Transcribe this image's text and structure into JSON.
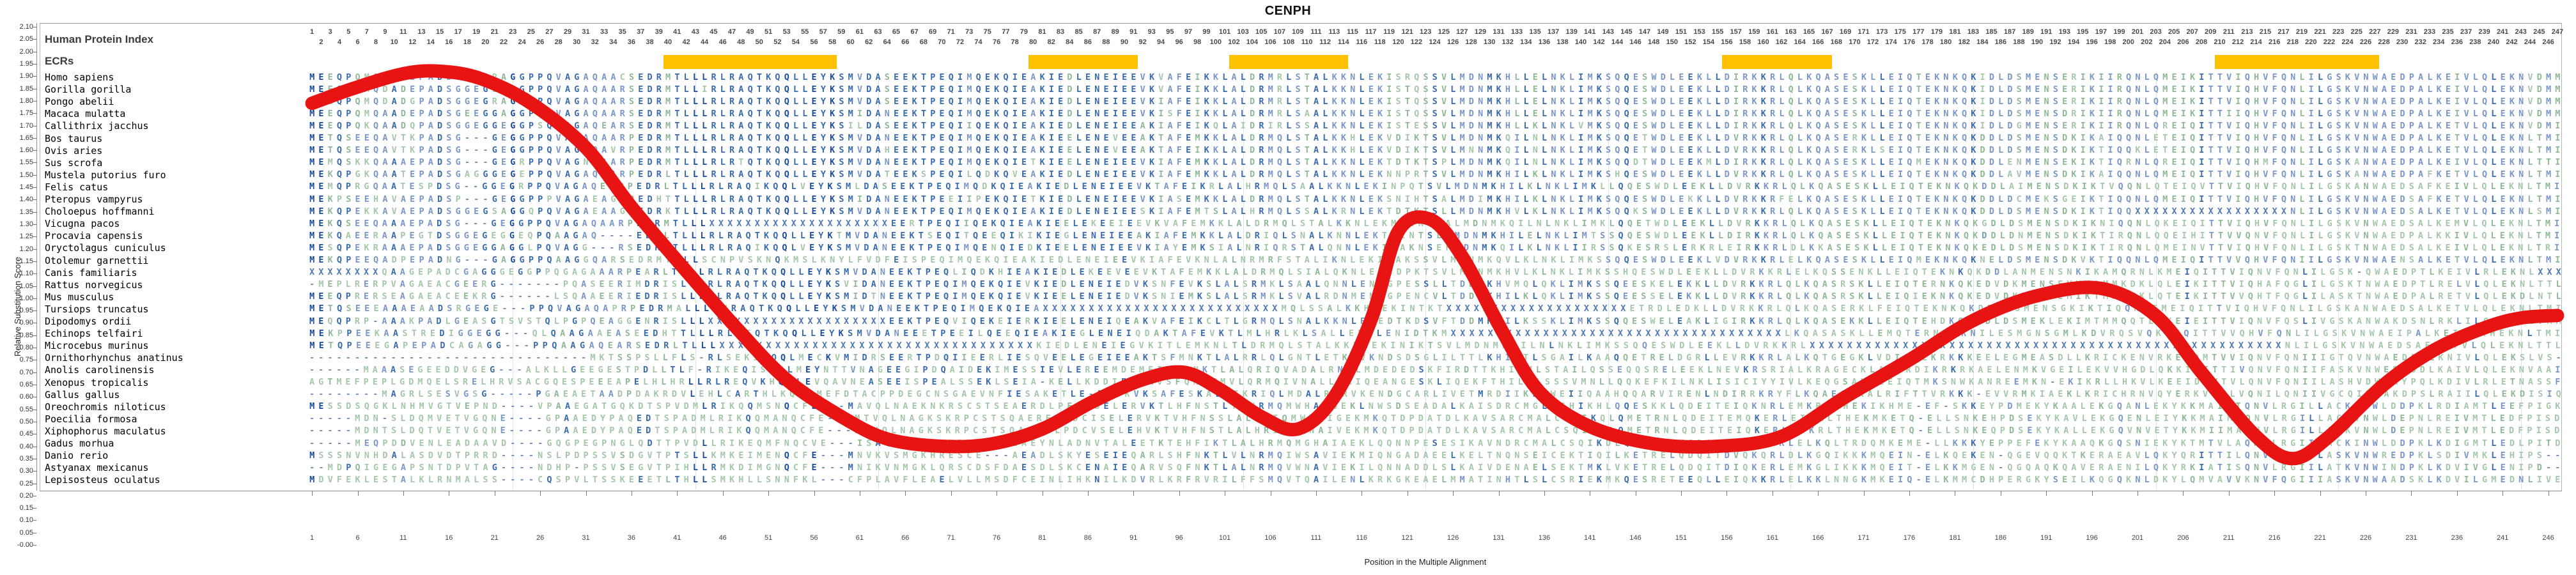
{
  "title": "CENPH",
  "header": {
    "index_label": "Human Protein Index",
    "ecr_label": "ECRs",
    "column_numbers": {
      "first": 1,
      "last": 247
    }
  },
  "y_axis": {
    "label": "Relative Substitution Score",
    "min": 0.0,
    "max": 2.1,
    "step": 0.05
  },
  "x_axis": {
    "label": "Position in the Multiple Alignment",
    "tick_start": 1,
    "tick_step": 5,
    "tick_end": 246
  },
  "ecr_regions": [
    {
      "start": 40,
      "end": 58
    },
    {
      "start": 80,
      "end": 91
    },
    {
      "start": 102,
      "end": 114
    },
    {
      "start": 156,
      "end": 167
    },
    {
      "start": 210,
      "end": 227
    }
  ],
  "colors": {
    "ecr_bar": "#FFC000",
    "curve": "#e81313",
    "cons_high": "#1b4c9c",
    "cons_mid": "#3a6cac",
    "cons_low": "#7b97c5",
    "variant": "#8fb996",
    "variant_rare": "#a5c7a9",
    "unknown_x": "#4f7ab3",
    "gap": "#7490b5"
  },
  "species": [
    {
      "name": "Homo sapiens",
      "seq": "MEEQPQMQDADEPADSGGEGRAGGPPQVAGAQAACSEDRMTLLLRLRAQTKQQLLEYKSMVDASEEKTPEQIMQEKQIEAKIEDLENEIEEVKVAFEIKKLALDRMRLSTALKKNLEKISRQSSVLMDNMKHLLELNKLIMKSQQESWDLEEKLLDIRKKRLQLKQASESKLLEIQTEKNKQKIDLDSMENSERIKIIRQNLQMEIKITTVIQHVFQNLILGSKVNWAEDPALKEIVLQLEKNVDMM"
    },
    {
      "name": "Gorilla gorilla",
      "seq": "MEEQPQMQDADEPADSGGEGLAGGPPQVAGAQAARSEDRMTLLIRLRAQTKQQLLEYKSMVDASEEKTPEQIMQEKQIEAKIEDLENEIEEVKVAFEIKKLALDRMRLSTALKKNLEKISTQSSVLMDNMKHLLELNKLIMKSQQESWDLEEKLLDIRKKRLQLKQASESKLLEIQTEKNKQKIDLDSMENSERIKIIRQNLQMEIKITTVIQHVFQNLILGSKVNWAEDPALKEIVLQLEKNVDMM"
    },
    {
      "name": "Pongo abelii",
      "seq": "MEGQPQMQDADGPADSGGEGRAGGPPQVAGAQAARSEDRMTLLLRLRAQTKQQLLEYKSMVDASEEKTPEQIMQEKQIEAKIEDLENEIEEVKIAFEIKKLALDRMRLSTALKKNLEKISTQSSVLMDNMKHLLELNKLIMKSQQESWDLEEKLLDIRKKRLQLKQASESKLLEIQTEKNKQKIDLDSMENSERIKIIRQNLQMEIKITTVIQHVFQNLILGSKVNWAEDPALKEIVLQLEKNVDMM"
    },
    {
      "name": "Macaca mulatta",
      "seq": "MEEQPQMQAADEPADSGEEGGAGGPPQVAGAQAARSEDRMTLLLRLRAQTKQQLLEYKSMIDANEEKTPEQIMQEKQIEAKIEDLENEIEEVKISFEIKKLALDRMRLSAALKKNLEKISTQSSVLMDNMKHLLELNKLIMKSQQESWDLEEKLLDIRKKRLQLKQASESKLLEIQTEKNKQKIDLDSMENSDRIKIIRQNLQMEIKITTIIQHVFQNLILGSKVNWAEDPALKEIVLQLEKNVDMM"
    },
    {
      "name": "Callithrix jacchus",
      "seq": "MEEQPQKQAADQPADSGGEGGEGGPSQVAGAQEARSEDRMTLLLRLRAQTKQQLLEYKSILDASEEKTPEQIIQEKQIEAKIEDLENEIEEAKIAFEIKQLAIDRIRLSSALKKNLEKISTESSVLMDNMKHLLKLNKLVMKSQQESWDLEEKLLDIRKKRLQLKQASESKLLEIQTEKNKQKIDLDGMENSERIKIIRQNLQREIQITTVIQHVFQNLILGSKVNWAEDPALKETVLQLEKNVDMI"
    },
    {
      "name": "Bos taurus",
      "seq": "METQSEEQAVTKPADSG---GEGGPPQVAGAQAARPEDRMTLLLRLRAQTKQQLLEYKSMVDANEEKTPEQIMQEKQIEAKIEELENEVEEAKTAFEMKKLALDRMQLSTALKKHLEKVDIKTSVLMDNMKQILNLNKLIMKSQQETWDLEEKLLDVRKKRLQLKQASERKLLEIQTEKNKQKDDLDSMENSDKIKAIQQNLETEIQITTVIQHVFQNLILGSKVNWAEDPALKETVLQLEKNLTMI"
    },
    {
      "name": "Ovis aries",
      "seq": "METQSEEQAVTKPADSG---GEGGPPQVAGAQAVRPEDRMTLLLRLRAQTKQQLLEYKSMVDAHEEKTPEQIMQEKQIEAKIEELENEVEEAKTAFEIKKLALDRMQLSTALKKHLEKVDIKTSVLMNNMKQILNLNKLIMKSQQETWDLEEKLLDVRKKRLQLKQASERKLSEIQTEKNKQKDDLDSMENSDKIKTIQQKLETEIQITTVIQHVFQNLILGSKVNWAEDPALKETVLQLEKNLTMI"
    },
    {
      "name": "Sus scrofa",
      "seq": "MEMQSKKQAAAEPADSG---GEGRPPQVAGNDAARPEDRMTLLLRLRTQTKQQLLEYKSMVDANEEKTPEQIMQEKQIETKIEELENEIEEVKIAFEMKKLALDRMQLSTALKKNLEKTDTKTSPLMDNMKQILNLNKLIMKSQQDTWDLEEKMLDIRKKRLQLKQASESKLLEIQMEKNKQKDDLENMENSEKIKTIQRNLQREIQITTVIQHMFQNLILGSKANWAEDPALKEIVLQLEKNLTTI"
    },
    {
      "name": "Mustela putorius furo",
      "seq": "MEKQPGKQAATEPADSGAGGGEGEPPQVAGAQAARPEDRLTLLLRLRAQTKQQLLEYKSMVDATEEKSPEQILQDKQVEAKIEDLENEIEEVKIAFEMKKLALDRMQLSTALKKNLEKNNPRTSVLMDNMKHILKLNKLIMKSHQESWDLEEKLLDVRKKRLQLKQASESKLLEIQTEKNKQKDDLAVMENSDKIKAIQQNLQMEIQITTVIQHVFQNLILGSKANWAEDPAFKETVLQLEKNLTMI"
    },
    {
      "name": "Felis catus",
      "seq": "MEMQPRGQAATESPDSG--GGEGRPPQVAGAQEARPEDRLTLLLRLRAQIKQQLVEYKSMLDASEEKTPEQIMQDKQIEAKIEDLENEIEEVKTAFEIKRLALHRMQLSAALKKNLEKINPQTSVLMDNMKHILKLNKLIMKLLQQESWDLEEKLLDVRKKRLQLKQASESKLLEIQTEKNKQKDDLAIMENSDKIKTVQQNLQTEIQVTTVIQHVFQNLILGSKANWAEDSAFKEIVLQLEKNLTMI"
    },
    {
      "name": "Pteropus vampyrus",
      "seq": "MEKPSEEHAVAEPADSP---GEGGPPPVAGAEAGRPEDHTTLLLRLRAQTKQQLLEYKSMIDANEEKTPEEIIPEKQIETKIEDLENEIEEVKIASEMKKLALDRMQLSTALKKNLEKSNIHTSALMDIMKHILKLNKLIMKSQQESWDLEKKLLDVRKKRFELKQASESKLLEIQTEKNKQKDDLDCMEKSGEIKTIQQNLQMEIQITTVIQHVFQNLILGSKVNWAEDSAFKETVLQLEKNLTMI"
    },
    {
      "name": "Choloepus hoffmanni",
      "seq": "MEKQPEKKAVAEPADSGGEGSAGGQPQVAGAEAAGGEDRKTLLLRLRAQTKQQLLEYKSMVDANEEKTPEQIMQEKQIEAKIEDLENEIEESKIAFEMTSLALHRMQLSSALKRNLEKTDTKTSLLMDNMKHVLKLNKLIMKSQQKSWDLEEKLLDVRKKRLQLKQASESKLLEIQTEKNKQKDDLDSMENSDKIKTIQQXXXXXXXXXXXXXXXXXNLILGSKVNWAEDSALKETVLQLEKNLSMI"
    },
    {
      "name": "Vicugna pacos",
      "seq": "MEKQSEEQAAAEPADSG---GEGGPPQVAGAQAARPEDRMTLLLXXXXXXXXXXXXXXXXXXXXEERTPEQIIQEKQIEAKIEELEKEEIEEVKVAFEMKKLALDRMQLSTALKKNLEKMDIKTSALMDNMKQILNLNKLIMKLQQETWDLEEKLLDVRKKRLQLKQASESKLLEIQTEKNKQKGDLDSMENSDKIKNIQQNLQKEIQITTVIQHVFQNLILGSKVNWAEDSALKEMVLQLEKNLTMI"
    },
    {
      "name": "Procavia capensis",
      "seq": "MEKQAEERAAPEGTDSGGEGEGGEQPQAAGAQ----EDHLTLLLRLRAQTKQQLLEYKTMVDANEEKTSEQITQEEQIKIKIEGLENEIEEAKIAFEMKKLALDRIQLSNALKNNLEKTDINTSLLMDNMKHILELNKLIMTSSQQESWDLEEKLLDIRKKRLQLKQASESKLLEIQTEKNKQKDDLDNMENSDKIKTIRQNLQQEIHITTVVQNVFQNLILGSKVNWAEDPALKKIVLQLEKNLTMI"
    },
    {
      "name": "Oryctolagus cuniculus",
      "seq": "MESQPEKRAAAEPADSGGEGGAGGLPQVAGG---RSEDRVTLLLRLRAQIKQQLVEYKSMVDANEEKTPEQIMQENQIEDKIEELENEIEEVKIAYEMKSIALNRIQRSTALQNNLEKIDAKNSEFMDNMKQILKLNKLIIRSSQKESRSLERKRLEIRKKRLDLKKASESKLLEIQTEKNKQKEDLDSMENSDKIKTIRQNLQMEINVTTVIQHVFQNLILGSKTNWAEDSALKEIVLQLEKNLTRI"
    },
    {
      "name": "Otolemur garnettii",
      "seq": "MEKQPEEQADPEPADNG---GAGGPPQAAGGQARSEDRMTLLLSCNPVSKNQKMSLKNYLFVDFEISPEQIMQEKQIEAKIEDLENEIEEVKIAFEVKNLALNRMRFSTALIKNLEKINAKSSVLMDNMKQVLKLNKLIMKSSQQESWDLEEKLVDVRKKRLELKQASESKLLEIQMEKNKQKNELDSMENSDKVKTIQQNLQMEIQITTVVQHVFQNIILGSKVNWAENSALKETVLQLEKNLTMI"
    },
    {
      "name": "Canis familiaris",
      "seq": "XXXXXXXXQAAGEPADCGAGGGEGGPPQGAGAAARPEARLTLLLRLRAQTKQQLLEYKSMVDANEEKTPEQLIQDKHIEAKIEDLEKEEVEEVKTAFEMKKLALDRMQLSIALQKNLEKIDPKTSVLMDNMKHVLKLNKLIMKSSHQESWDLEEKLLDVRKKRLELKQSSENKLLEIQTEKNKQKDDLANMENSNKIKAMQRNLKMEIQITTVIQNVFQNLILGSK-QWAEDPTLKEIVLRLEKNLXXX"
    },
    {
      "name": "Rattus norvegicus",
      "seq": "-MEPLRERPVAGAEACGEERG-------PQASEERIMDRISLLLRLRAQTKQQLLEYKSVIDANEEKTPEQIMQEKQIEVKIEDLENEIEDVKSNFEVKSLALSRMKLSAALQNNLENMGPESSLLTDDMKHVMQLQKLIMKSSQEESKELEKKLLDVRKKRLQLKQASRSKLLEIQTERNKQKEDVDKMENSEVVKAMMKDKLQLEIKITTVIQHAFQGLILGSKTNWAEDPTLRELVLQLEKNLTTL"
    },
    {
      "name": "Mus musculus",
      "seq": "MEEQPRERSEAGAEACEEKRG------LSQAAEERIEDRISLLLRLRAQTKQQLLEYKSMIDTNEEKTPEQIMQEKQIEVKIEELENEIEDVKSNIEMKSLALSRMKLSVALRDNMENMGPENCVLTDDMKHILKLQKLIMKSSQEESSELEKKLLDVRKKRLQLKQASRSKLLEIQIEKNKQKEDVDKMENSEMIKTMMKKKLQTEIKITTVVQHTFQGLILASKTNWAEDPALRETVLQLEKDLNTL"
    },
    {
      "name": "Tursiops truncatus",
      "seq": "METQSEEEAAAEAADSRGEGE---PPQVAGAQAPRPEDRMALLLRVRAQTKQQLLEYKSMVDANEEKTPEQIMQEKQIEAXXXXXXXXXXXXXXXXXXXXXXXXXXMQLSSALKKHMEKINTKTXXXXXXXXXXXXXXXXXXXXETRDLEDKLLDVRKKRLQLKQASERKLFEIQTEKNKQKDDLGSMENSGKIKTIQQNLEMEIQITTVIQHVFQNLILGSKANWAEDSALKETVLQLEKNLTMI"
    },
    {
      "name": "Dipodomys ordii",
      "seq": "MEQQPRP-AAAKPADLGEASGTSVSTQLPGPQEAGGENRISLLLXXXXXXXXXXXXXXXXXXXXEEKTPEQVIQEKEIERKIEELENEIQEAKVAFEIKCLTLGRMQLSNALKKNLEKEDTKDSVFTDDMKHILKSSKLIMKSSQQESWELEAKLIGIRKKRLQLKQASEKKLLEIQTEHDKQQKDLDSMEKLEKIMTMMQQTLTKEIEITTVIQNVFQSLIVGSKANWAKDSNLRKLILQFEKNLTMM"
    },
    {
      "name": "Echinops telfairi",
      "seq": "MEKPPEEKAASTREDIGGEGG---QLQAAGAAEASEEDHTTLLLRLREQTKQQLLEYKSMVDANEEETPEEILQEEQIEAKIEGLENEIQDAKTAFEVKTLMLHRLKLSALLENNLENIDTKMXXXXXXXXXXXXXXXXXXXXXXXXXXXXXXXXXXXXLKQASASKLLEMQTERNKQKNILESMGNSGMLKDVRQSVQKEIQITTVVQHVFQNLILGSKVNWAEIPALKEIVLNHEKNLTMI"
    },
    {
      "name": "Microcebus murinus",
      "seq": "METQPEEEGAPEPADCAGAGG---PPQAAGAQEARSEDRLTLLLXXXXXXXXXXXXXXXXXXXXXXXXXXXXXXXXXXKIEDLENEIEGVKITLEMKNLTLDRMQLSTALKKHLEKINIKTSVLMDNMKQILNLNKLIMKSSQQESWDLEEKLLDVRKKRLXXXXXXXXXXXXXXXXXXXXXXXXXXXXXXXXXXXXXXXXXXXXXXXXXXXNLILGSKVNWAEDSAFKETVLQLEKNLTTL"
    },
    {
      "name": "Ornithorhynchus anatinus",
      "seq": "-------------------------------MKTSSPSLLFLS-RLSEKIKQQLMECKVMIDRSEERTPDQIIEERLIESQVEELEGEIEEAKTSFMNKTLALRRLQLGNTLETKLVKNDSDSGLILTTLKHILTLSGAILKAAQQETRELDGRLLEVRKKRLALKQTGEGKLVDIQTLKRKKKEELEGMEASDLLKRICKENVRKEIQMTVVIQNVFQNIIIGTQVNWAEDPALKNIVLQLEKSLVS-"
    },
    {
      "name": "Anolis carolinensis",
      "seq": "------MAAASEGEEDDVGEG---ALKLLGEEGESTPDLLTLF-RIKEQISQQLMEYNTTVNAGEEGIPDQAIDEKIMESSIEVLEREEMDEMEISYRNKTLALQRIQVADALRNKLMDEDEDSKFIRDTTKHIIMLSTAILQSSEQQSRELEEKLNEVKRSRIALKRAGECKLAQIRDIKRKRKAELENMKVGEILEKVVHGDLQKKIKITTIVQNVFQNIIFASKVNWEEDSDLKAIVLQLEKNVAAI"
    },
    {
      "name": "Xenopus tropicalis",
      "seq": "AGTMEFPEPLGDMQELSRELHRVSACGQESPEEEAPELHLHRLLRLREQVKHQRLEVQAVNEASEEISPEALSSEKLSEIA-KELLKDDIEDVKVSFQNKTMVLQRMQIVNALLSKIQEANGESKLIQEKFTHILMLSSSVMNLLQQKEFKILNKLISICIYYIVLKEQGSAKMLEIQTMKSNWKANREEMKN-EKIKRLLHKVLKEEIDSVTVLQNVFQNIILASHVDWAKYPQLKDIVLRLETNASSF"
    },
    {
      "name": "Gallus gallus",
      "seq": "--------MAGRLSESVGSG-----PGAEAETAADPDAKRDVLEHLCARTHLKQLVMEFDTACPPDEGCNSGAEVNFIESAKETLE-EVGKVKSAFESKALVIKRIQLMDALRKRVKENDGCARLIVETMRDIIKLNWEIIQAAHQQARVIRENLNDIRRKRYFLKQAEGEKALRIFTTVRKKK-EVVRMKIAEKLKRICHRNVQYERKVTTLVQNILQNIIVGCQINWAKDPSLRAIILQLEKDISIQ"
    },
    {
      "name": "Oreochromis niloticus",
      "seq": "MESSDSQGKLNHMVGTVEPND----VPAAEGATGQKDTSPVDMLRIKQQMSNQCFE---MAVQLNAEKNKRSCSTSEAERDLPEYISELERVKTLHFNSTLTLHRMQMWHAIGEKLNWSDSEADALKAISDRCMGLCSHIKHLQQESKKLQDEITEIQKNRLEMKRVTHEKIKHME-EF-SKKEYPDMEKYKAALEKGQANLEKYKKMAIMTQNVLRGILLACKVNWLDDPKLRDIAMTLEEFPIGK"
    },
    {
      "name": "Poecilia formosa",
      "seq": "-----MDN-SLDQMVETVGQNE----GPAAEDYPAQEDTSPADMLRIKQQMANQCFE---MTVQLNAGKSKRPCSTSQAERELPDCISELERVKTVHFNSSLALHRIQMWNAIGEKMKQTDPDATDLKAVSARCMALCSQIKQLQMETRNLQDEITEMQKERLEIKRLTHEKMKETQ-ELLSNKEHPDSEKYKAVLEKGQENLEIYKKMAIMAQNVLRGILLACKVNWLDEPNLREIVMTLEDFPISD"
    },
    {
      "name": "Xiphophorus maculatus",
      "seq": "-----MDNTSLDQTVETVGQNE----GPAAEDYPAQEDTSPADMLRIKQQMANQCFE---MTVQLNAGKSKRPCSTSQAERELPDCVSELEHVKTVHFNSTLALHRIQMWNAIVEKMKQTDPDATDLKAVSARCMALCSQIKRLQMETRNLQDEITEIQKERLEIKRLTHEKMKETQ-ELLSNKEQPDSEKYKALLEKGQVNVETYKKMIIMAQNVLRGILLACKVNWLDEPNLREIVMTLEDFPISD"
    },
    {
      "name": "Gadus morhua",
      "seq": "-----MEQPDDVENLEADAAVD----GQGPEGPNGLQDTTPVDLLRIKEQMFNQCVE---ISAQINAVENKRTCSTSEAEYNLADNVTALEETKTEHFIKTLALHRMQMGHAIAEKLQQNNPESESIKAVNDRCMALCSQIKDLQQESRDMGDQITDIRKKRLELKQLTRDQMKEME-LLKKKYEPPEFEKYKAAQKGQSNIEKYKTMTVLAQNVLRGIILACKINWLDDPKLKDIGMTLEDLPITD"
    },
    {
      "name": "Danio rerio",
      "seq": "MSSSNVNHDALASDVDTPRRD----NSLPDPSSVSDGVTPTSLLKMKEIMENQCFE---MNVKVSMGKHRESCE---AEADLSKYESEIEQARLSHFNKTLVLNRMQIWSAVIEKMIQNGADAEELKELTNQNSEICEKTIQILKETRELQDQITDVQKQRLDLKGQIKKKMQEIN-ELKQEKEN-QGEVQQKTKERAEAVLQKYQRITTILQNVLRGIILASKVNWREDPKLSDIVMKLEHIPS--"
    },
    {
      "name": "Astyanax mexicanus",
      "seq": "--MDPQIGEGAPSNTDPVTAG----NDHP-PSSVSEGVTPIHLLRMKDIMGNQCFE---MNIKVNMGKLQRSCDSFDAESDLSKCENAIEQARVSQFNKTLALNRMQVWNAVIEKILQNNADDLSLKAIVDENAELSEKTMKLVKETRELQDQITDIQKERLEMKGLIKKKMQEIT-ELKKMGEN-QGQAQKQAVERAENILQKYRKIATISQNVLRGIILATKVNWINDPKLKDVIVGLENIPD--"
    },
    {
      "name": "Lepisosteus oculatus",
      "seq": "MDVFEKLESTALKLRNMALSS----CQSPVLTSSKEEETLTHLLSMKHLLSNNFKL---CFPLAVFLEAELVLLMSDFCEINLIHKNILKDVRLKRFRVRILFFSMQVTQAILENLKRKGKEAELMMATINHTLSLCSRIEKMKQESRETEEQLLEIQKKRLELKKLNNGKMKEIQ-ELKMMCDHPERGKYSEILKQGQKNLDKYLQMVAVVKNVFQGIIIASKVNWAADSKLKDVILGMEDNLIVE"
    }
  ],
  "chart_data": {
    "type": "line",
    "title": "CENPH",
    "xlabel": "Position in the Multiple Alignment",
    "ylabel": "Relative Substitution Score",
    "xlim": [
      1,
      247
    ],
    "ylim": [
      0,
      2.1
    ],
    "legend": "none",
    "grid": "off",
    "line_color": "#e81313",
    "line_width": 21,
    "series": [
      {
        "name": "Relative Substitution Score",
        "points": [
          [
            1,
            1.79
          ],
          [
            5.5,
            1.85
          ],
          [
            11,
            1.91
          ],
          [
            15,
            1.92
          ],
          [
            19.5,
            1.89
          ],
          [
            25,
            1.79
          ],
          [
            31,
            1.61
          ],
          [
            36,
            1.37
          ],
          [
            42,
            1.11
          ],
          [
            47.5,
            0.88
          ],
          [
            53,
            0.67
          ],
          [
            59,
            0.52
          ],
          [
            64,
            0.43
          ],
          [
            70,
            0.4
          ],
          [
            75.5,
            0.41
          ],
          [
            81,
            0.47
          ],
          [
            86.5,
            0.58
          ],
          [
            92,
            0.67
          ],
          [
            96.5,
            0.7
          ],
          [
            100.5,
            0.63
          ],
          [
            105,
            0.52
          ],
          [
            109,
            0.47
          ],
          [
            113,
            0.6
          ],
          [
            117,
            0.91
          ],
          [
            120,
            1.27
          ],
          [
            123.5,
            1.32
          ],
          [
            127,
            1.17
          ],
          [
            131.5,
            0.86
          ],
          [
            135.5,
            0.62
          ],
          [
            141,
            0.48
          ],
          [
            148,
            0.41
          ],
          [
            155,
            0.4
          ],
          [
            162,
            0.44
          ],
          [
            169,
            0.6
          ],
          [
            176,
            0.75
          ],
          [
            183,
            0.91
          ],
          [
            190,
            1.01
          ],
          [
            197,
            1.04
          ],
          [
            203,
            0.93
          ],
          [
            208,
            0.7
          ],
          [
            214,
            0.44
          ],
          [
            218,
            0.35
          ],
          [
            222,
            0.44
          ],
          [
            228,
            0.65
          ],
          [
            233.5,
            0.79
          ],
          [
            239,
            0.88
          ],
          [
            243,
            0.92
          ],
          [
            247,
            0.93
          ]
        ]
      }
    ]
  }
}
